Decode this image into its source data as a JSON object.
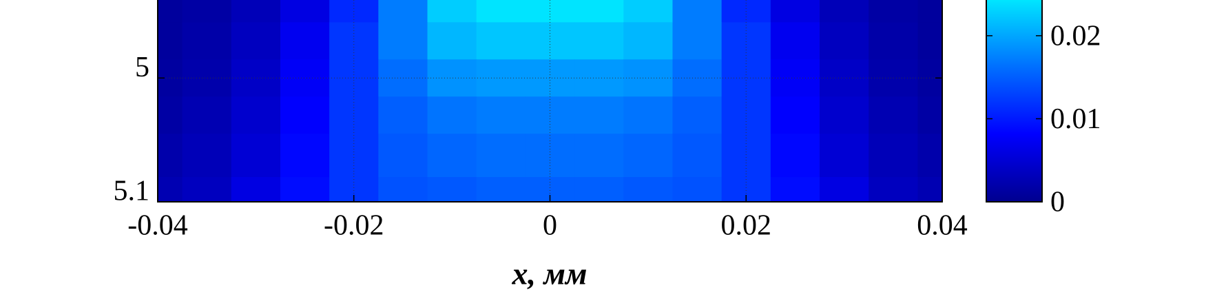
{
  "chart_data": {
    "type": "heatmap",
    "xlabel": "x, мм",
    "x": [
      -0.04,
      -0.035,
      -0.03,
      -0.025,
      -0.02,
      -0.015,
      -0.01,
      -0.005,
      0,
      0.005,
      0.01,
      0.015,
      0.02,
      0.025,
      0.03,
      0.035,
      0.04
    ],
    "y": [
      4.94,
      4.97,
      5.0,
      5.03,
      5.06,
      5.1
    ],
    "z": [
      [
        0.001,
        0.0015,
        0.003,
        0.006,
        0.011,
        0.017,
        0.0225,
        0.024,
        0.024,
        0.024,
        0.0225,
        0.017,
        0.011,
        0.006,
        0.003,
        0.0015,
        0.001
      ],
      [
        0.001,
        0.0018,
        0.0035,
        0.007,
        0.012,
        0.017,
        0.021,
        0.022,
        0.022,
        0.022,
        0.021,
        0.017,
        0.012,
        0.007,
        0.0035,
        0.0018,
        0.001
      ],
      [
        0.0012,
        0.002,
        0.004,
        0.0075,
        0.012,
        0.016,
        0.0185,
        0.019,
        0.019,
        0.019,
        0.0185,
        0.016,
        0.012,
        0.0075,
        0.004,
        0.002,
        0.0012
      ],
      [
        0.0015,
        0.0025,
        0.0045,
        0.008,
        0.012,
        0.015,
        0.0165,
        0.017,
        0.017,
        0.017,
        0.0165,
        0.015,
        0.012,
        0.008,
        0.0045,
        0.0025,
        0.0015
      ],
      [
        0.002,
        0.003,
        0.005,
        0.0085,
        0.012,
        0.0145,
        0.0155,
        0.016,
        0.016,
        0.016,
        0.0155,
        0.0145,
        0.012,
        0.0085,
        0.005,
        0.003,
        0.002
      ],
      [
        0.0025,
        0.0035,
        0.006,
        0.009,
        0.012,
        0.014,
        0.0145,
        0.015,
        0.015,
        0.015,
        0.0145,
        0.014,
        0.012,
        0.009,
        0.006,
        0.0035,
        0.0025
      ]
    ],
    "xlim": [
      -0.04,
      0.04
    ],
    "xticks": [
      -0.04,
      -0.02,
      0,
      0.02,
      0.04
    ],
    "ylim": [
      5.1,
      4.937
    ],
    "yticks": [
      5,
      5.1
    ],
    "clim": [
      0,
      0.0243
    ],
    "cticks": [
      0,
      0.01,
      0.02
    ],
    "colormap": [
      "#00008f",
      "#0000ff",
      "#0070ff",
      "#00e8ff"
    ],
    "grid": true
  }
}
